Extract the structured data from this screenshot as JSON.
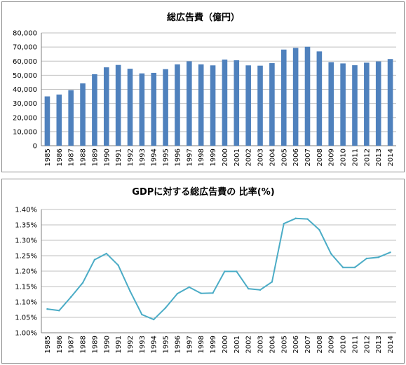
{
  "chart_data": [
    {
      "type": "bar",
      "title": "総広告費（億円）",
      "xlabel": "",
      "ylabel": "",
      "categories": [
        "1985",
        "1986",
        "1987",
        "1988",
        "1989",
        "1990",
        "1991",
        "1992",
        "1993",
        "1994",
        "1995",
        "1996",
        "1997",
        "1998",
        "1999",
        "2000",
        "2001",
        "2002",
        "2003",
        "2004",
        "2005",
        "2006",
        "2007",
        "2008",
        "2009",
        "2010",
        "2011",
        "2012",
        "2013",
        "2014"
      ],
      "values": [
        35000,
        36300,
        39400,
        44200,
        50700,
        55600,
        57300,
        54600,
        51300,
        51700,
        54300,
        57700,
        59900,
        57700,
        57000,
        61100,
        60600,
        57000,
        56800,
        58600,
        68200,
        69400,
        70200,
        66900,
        59200,
        58400,
        57100,
        58900,
        59800,
        61500
      ],
      "ylim": [
        0,
        80000
      ],
      "yticks": [
        "0",
        "10,000",
        "20,000",
        "30,000",
        "40,000",
        "50,000",
        "60,000",
        "70,000",
        "80,000"
      ],
      "grid": true,
      "color": "#4f81bd"
    },
    {
      "type": "line",
      "title": "GDPに対する総広告費の 比率(%)",
      "xlabel": "",
      "ylabel": "",
      "categories": [
        "1985",
        "1986",
        "1987",
        "1988",
        "1989",
        "1990",
        "1991",
        "1992",
        "1993",
        "1994",
        "1995",
        "1996",
        "1997",
        "1998",
        "1999",
        "2000",
        "2001",
        "2002",
        "2003",
        "2004",
        "2005",
        "2006",
        "2007",
        "2008",
        "2009",
        "2010",
        "2011",
        "2012",
        "2013",
        "2014"
      ],
      "values": [
        1.077,
        1.072,
        1.116,
        1.162,
        1.237,
        1.257,
        1.219,
        1.135,
        1.059,
        1.043,
        1.081,
        1.127,
        1.148,
        1.128,
        1.129,
        1.199,
        1.199,
        1.143,
        1.139,
        1.165,
        1.354,
        1.371,
        1.369,
        1.334,
        1.256,
        1.212,
        1.212,
        1.241,
        1.245,
        1.261
      ],
      "ylim": [
        1.0,
        1.4
      ],
      "yticks": [
        "1.00%",
        "1.05%",
        "1.10%",
        "1.15%",
        "1.20%",
        "1.25%",
        "1.30%",
        "1.35%",
        "1.40%"
      ],
      "grid": true,
      "color": "#4bacc6"
    }
  ]
}
